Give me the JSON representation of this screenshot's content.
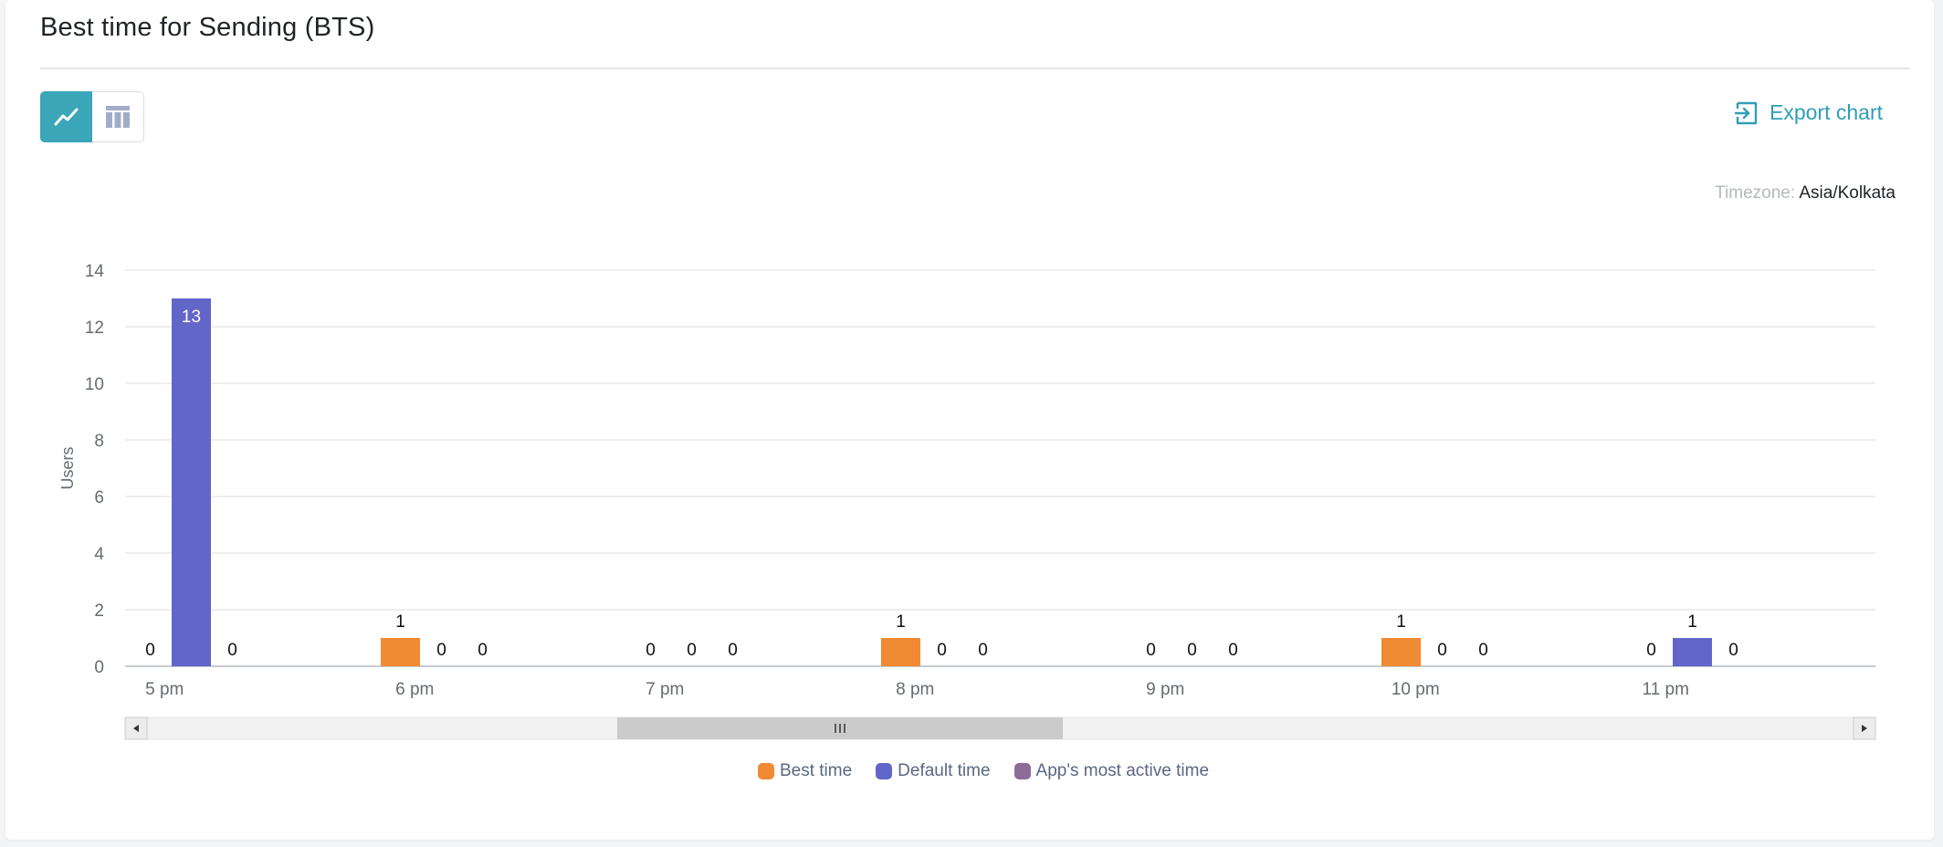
{
  "header": {
    "title": "Best time for Sending (BTS)"
  },
  "toolbar": {
    "views": [
      {
        "name": "chart-view",
        "icon": "line-chart-icon",
        "active": true
      },
      {
        "name": "table-view",
        "icon": "table-icon",
        "active": false
      }
    ],
    "export_label": "Export chart",
    "export_icon": "export-icon"
  },
  "timezone": {
    "label": "Timezone:",
    "value": "Asia/Kolkata"
  },
  "chart_data": {
    "type": "bar",
    "title": "",
    "xlabel": "",
    "ylabel": "Users",
    "ylim": [
      0,
      14
    ],
    "yticks": [
      0,
      2,
      4,
      6,
      8,
      10,
      12,
      14
    ],
    "categories": [
      "5 pm",
      "6 pm",
      "7 pm",
      "8 pm",
      "9 pm",
      "10 pm",
      "11 pm"
    ],
    "series": [
      {
        "name": "Best time",
        "color": "#f08a33",
        "values": [
          0,
          1,
          0,
          1,
          0,
          1,
          0
        ]
      },
      {
        "name": "Default time",
        "color": "#6266c8",
        "values": [
          13,
          0,
          0,
          0,
          0,
          0,
          1
        ]
      },
      {
        "name": "App's most active time",
        "color": "#8e6b99",
        "values": [
          0,
          0,
          0,
          0,
          0,
          0,
          0
        ]
      }
    ],
    "grid": true,
    "data_labels": true,
    "legend_position": "bottom",
    "scrollbar": true,
    "colors": {
      "grid": "#e6e8eb",
      "axis_text": "#666b73",
      "scroll_track": "#f1f1f1",
      "scroll_thumb": "#cbcbcb"
    }
  }
}
